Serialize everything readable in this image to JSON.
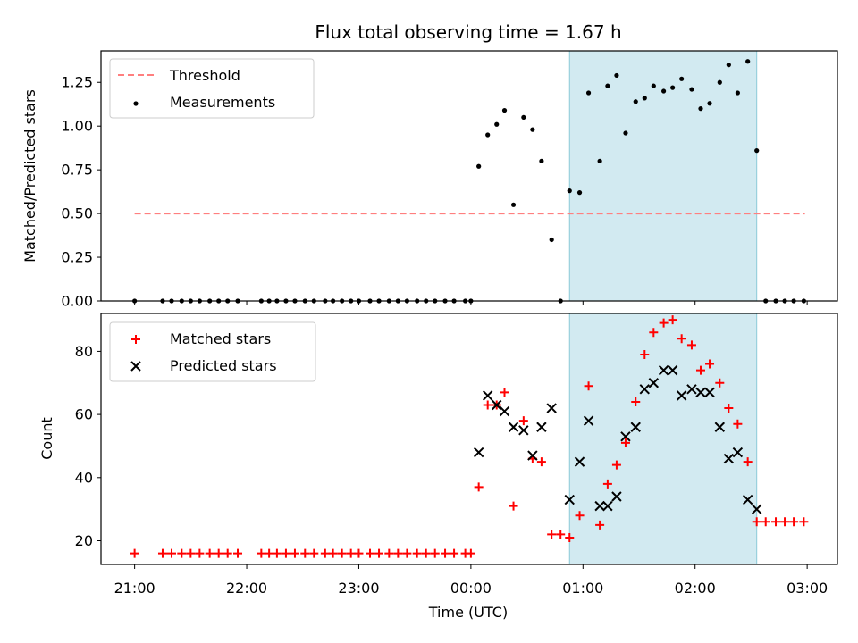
{
  "chart_data": {
    "type": "scatter",
    "title": "Flux total observing time = 1.67 h",
    "xlabel": "Time (UTC)",
    "x_ticks": [
      "21:00",
      "22:00",
      "23:00",
      "00:00",
      "01:00",
      "02:00",
      "03:00"
    ],
    "x_tick_hours": [
      0,
      1,
      2,
      3,
      4,
      5,
      6
    ],
    "xlim_hours_after_2100": [
      -0.3,
      6.27
    ],
    "shaded_interval_hours_after_2100": [
      3.88,
      5.55
    ],
    "shade_color": "#add8e6",
    "top_panel": {
      "ylabel": "Matched/Predicted stars",
      "ylim": [
        0,
        1.43
      ],
      "yticks": [
        "0.00",
        "0.25",
        "0.50",
        "0.75",
        "1.00",
        "1.25"
      ],
      "ytick_values": [
        0,
        0.25,
        0.5,
        0.75,
        1.0,
        1.25
      ],
      "legend_position": "upper-left",
      "series": [
        {
          "name": "Threshold",
          "kind": "dashed-line",
          "color": "#ff7f7f",
          "x": [
            0.0,
            5.98
          ],
          "y": [
            0.5,
            0.5
          ]
        },
        {
          "name": "Measurements",
          "kind": "dots",
          "color": "#000000",
          "x": [
            0.0,
            0.25,
            0.33,
            0.42,
            0.5,
            0.58,
            0.67,
            0.75,
            0.83,
            0.92,
            1.13,
            1.2,
            1.27,
            1.35,
            1.43,
            1.52,
            1.6,
            1.7,
            1.77,
            1.85,
            1.93,
            2.0,
            2.1,
            2.18,
            2.27,
            2.35,
            2.43,
            2.52,
            2.6,
            2.68,
            2.77,
            2.85,
            2.95,
            3.0,
            3.07,
            3.15,
            3.23,
            3.3,
            3.38,
            3.47,
            3.55,
            3.63,
            3.72,
            3.8,
            3.88,
            3.97,
            4.05,
            4.15,
            4.22,
            4.3,
            4.38,
            4.47,
            4.55,
            4.63,
            4.72,
            4.8,
            4.88,
            4.97,
            5.05,
            5.13,
            5.22,
            5.3,
            5.38,
            5.47,
            5.55,
            5.63,
            5.72,
            5.8,
            5.88,
            5.97
          ],
          "y": [
            0,
            0,
            0,
            0,
            0,
            0,
            0,
            0,
            0,
            0,
            0,
            0,
            0,
            0,
            0,
            0,
            0,
            0,
            0,
            0,
            0,
            0,
            0,
            0,
            0,
            0,
            0,
            0,
            0,
            0,
            0,
            0,
            0,
            0,
            0.77,
            0.95,
            1.01,
            1.09,
            0.55,
            1.05,
            0.98,
            0.8,
            0.35,
            0,
            0.63,
            0.62,
            1.19,
            0.8,
            1.23,
            1.29,
            0.96,
            1.14,
            1.16,
            1.23,
            1.2,
            1.22,
            1.27,
            1.21,
            1.1,
            1.13,
            1.25,
            1.35,
            1.19,
            1.37,
            0.86,
            0,
            0,
            0,
            0,
            0
          ]
        }
      ]
    },
    "bottom_panel": {
      "ylabel": "Count",
      "ylim": [
        12.5,
        92
      ],
      "yticks": [
        "20",
        "40",
        "60",
        "80"
      ],
      "ytick_values": [
        20,
        40,
        60,
        80
      ],
      "legend_position": "upper-left",
      "series": [
        {
          "name": "Matched stars",
          "marker": "plus",
          "color": "#ff0000",
          "x": [
            0.0,
            0.25,
            0.33,
            0.42,
            0.5,
            0.58,
            0.67,
            0.75,
            0.83,
            0.92,
            1.13,
            1.2,
            1.27,
            1.35,
            1.43,
            1.52,
            1.6,
            1.7,
            1.77,
            1.85,
            1.93,
            2.0,
            2.1,
            2.18,
            2.27,
            2.35,
            2.43,
            2.52,
            2.6,
            2.68,
            2.77,
            2.85,
            2.95,
            3.0,
            3.07,
            3.15,
            3.23,
            3.3,
            3.38,
            3.47,
            3.55,
            3.63,
            3.72,
            3.8,
            3.88,
            3.97,
            4.05,
            4.15,
            4.22,
            4.3,
            4.38,
            4.47,
            4.55,
            4.63,
            4.72,
            4.8,
            4.88,
            4.97,
            5.05,
            5.13,
            5.22,
            5.3,
            5.38,
            5.47,
            5.55,
            5.63,
            5.72,
            5.8,
            5.88,
            5.97
          ],
          "y": [
            16,
            16,
            16,
            16,
            16,
            16,
            16,
            16,
            16,
            16,
            16,
            16,
            16,
            16,
            16,
            16,
            16,
            16,
            16,
            16,
            16,
            16,
            16,
            16,
            16,
            16,
            16,
            16,
            16,
            16,
            16,
            16,
            16,
            16,
            37,
            63,
            63,
            67,
            31,
            58,
            46,
            45,
            22,
            22,
            21,
            28,
            69,
            25,
            38,
            44,
            51,
            64,
            79,
            86,
            89,
            90,
            84,
            82,
            74,
            76,
            70,
            62,
            57,
            45,
            26,
            26,
            26,
            26,
            26,
            26
          ]
        },
        {
          "name": "Predicted stars",
          "marker": "x",
          "color": "#000000",
          "x": [
            3.07,
            3.15,
            3.23,
            3.3,
            3.38,
            3.47,
            3.55,
            3.63,
            3.72,
            3.88,
            3.97,
            4.05,
            4.15,
            4.22,
            4.3,
            4.38,
            4.47,
            4.55,
            4.63,
            4.72,
            4.8,
            4.88,
            4.97,
            5.05,
            5.13,
            5.22,
            5.3,
            5.38,
            5.47,
            5.55
          ],
          "y": [
            48,
            66,
            63,
            61,
            56,
            55,
            47,
            56,
            62,
            33,
            45,
            58,
            31,
            31,
            34,
            53,
            56,
            68,
            70,
            74,
            74,
            66,
            68,
            67,
            67,
            56,
            46,
            48,
            33,
            30
          ]
        }
      ]
    }
  }
}
